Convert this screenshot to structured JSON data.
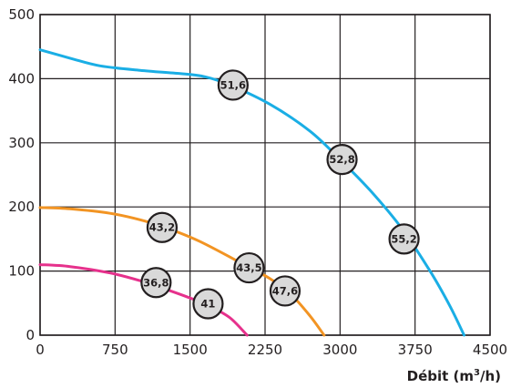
{
  "chart_data": {
    "type": "line",
    "xlabel": {
      "prefix": "Débit (m",
      "sup": "3",
      "suffix": "/h)"
    },
    "ylabel": "",
    "xlim": [
      0,
      4500
    ],
    "ylim": [
      0,
      500
    ],
    "xticks": [
      "0",
      "750",
      "1500",
      "2250",
      "3000",
      "3750",
      "4500"
    ],
    "yticks": [
      "0",
      "100",
      "200",
      "300",
      "400",
      "500"
    ],
    "grid": true,
    "series": [
      {
        "color": "#1aaee5",
        "points": [
          [
            0,
            445
          ],
          [
            300,
            432
          ],
          [
            600,
            420
          ],
          [
            1000,
            413
          ],
          [
            1400,
            408
          ],
          [
            1650,
            403
          ],
          [
            1900,
            390
          ],
          [
            2300,
            360
          ],
          [
            2700,
            318
          ],
          [
            3000,
            274
          ],
          [
            3300,
            226
          ],
          [
            3600,
            170
          ],
          [
            3900,
            100
          ],
          [
            4100,
            45
          ],
          [
            4240,
            0
          ]
        ]
      },
      {
        "color": "#f29423",
        "points": [
          [
            0,
            199
          ],
          [
            300,
            197
          ],
          [
            700,
            190
          ],
          [
            1000,
            180
          ],
          [
            1250,
            168
          ],
          [
            1600,
            146
          ],
          [
            2100,
            105
          ],
          [
            2300,
            88
          ],
          [
            2500,
            65
          ],
          [
            2700,
            30
          ],
          [
            2840,
            0
          ]
        ]
      },
      {
        "color": "#e6318c",
        "points": [
          [
            0,
            110
          ],
          [
            300,
            107
          ],
          [
            700,
            97
          ],
          [
            1000,
            85
          ],
          [
            1250,
            72
          ],
          [
            1500,
            58
          ],
          [
            1700,
            45
          ],
          [
            1900,
            27
          ],
          [
            2070,
            0
          ]
        ]
      }
    ],
    "markers": [
      {
        "label": "51,6",
        "x": 1930,
        "y": 390
      },
      {
        "label": "52,8",
        "x": 3020,
        "y": 274
      },
      {
        "label": "55,2",
        "x": 3640,
        "y": 150
      },
      {
        "label": "43,2",
        "x": 1220,
        "y": 168
      },
      {
        "label": "43,5",
        "x": 2090,
        "y": 105
      },
      {
        "label": "47,6",
        "x": 2450,
        "y": 69
      },
      {
        "label": "36,8",
        "x": 1160,
        "y": 82
      },
      {
        "label": "41",
        "x": 1680,
        "y": 49
      }
    ],
    "marker_style": {
      "fill": "#d9d9d9",
      "stroke": "#231f20"
    },
    "grid_color": "#231f20"
  }
}
